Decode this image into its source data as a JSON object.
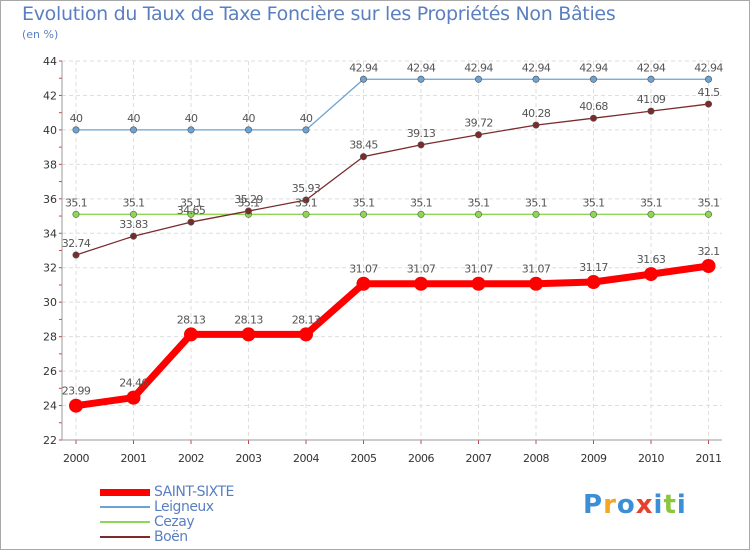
{
  "chart_data": {
    "type": "line",
    "title": "Evolution du Taux de Taxe Foncière sur les Propriétés Non Bâties",
    "subtitle": "(en %)",
    "x": [
      "2000",
      "2001",
      "2002",
      "2003",
      "2004",
      "2005",
      "2006",
      "2007",
      "2008",
      "2009",
      "2010",
      "2011"
    ],
    "ylim": [
      22,
      44
    ],
    "yticks": [
      22,
      24,
      26,
      28,
      30,
      32,
      34,
      36,
      38,
      40,
      42,
      44
    ],
    "grid": true,
    "legend_position": "bottom-left",
    "series": [
      {
        "name": "SAINT-SIXTE",
        "color": "#ff0000",
        "labels": [
          "23.99",
          "24.46",
          "28.13",
          "28.13",
          "28.13",
          "31.07",
          "31.07",
          "31.07",
          "31.07",
          "31.17",
          "31.63",
          "32.1"
        ],
        "values": [
          23.99,
          24.46,
          28.13,
          28.13,
          28.13,
          31.07,
          31.07,
          31.07,
          31.07,
          31.17,
          31.63,
          32.1
        ]
      },
      {
        "name": "Leigneux",
        "color": "#6aa3d4",
        "labels": [
          "40",
          "40",
          "40",
          "40",
          "40",
          "42.94",
          "42.94",
          "42.94",
          "42.94",
          "42.94",
          "42.94",
          "42.94"
        ],
        "values": [
          40,
          40,
          40,
          40,
          40,
          42.94,
          42.94,
          42.94,
          42.94,
          42.94,
          42.94,
          42.94
        ]
      },
      {
        "name": "Cezay",
        "color": "#8fd655",
        "labels": [
          "35.1",
          "35.1",
          "35.1",
          "35.1",
          "35.1",
          "35.1",
          "35.1",
          "35.1",
          "35.1",
          "35.1",
          "35.1",
          "35.1"
        ],
        "values": [
          35.1,
          35.1,
          35.1,
          35.1,
          35.1,
          35.1,
          35.1,
          35.1,
          35.1,
          35.1,
          35.1,
          35.1
        ]
      },
      {
        "name": "Boën",
        "color": "#7b2b2b",
        "labels": [
          "32.74",
          "33.83",
          "34.65",
          "35.29",
          "35.93",
          "38.45",
          "39.13",
          "39.72",
          "40.28",
          "40.68",
          "41.09",
          "41.5"
        ],
        "values": [
          32.74,
          33.83,
          34.65,
          35.29,
          35.93,
          38.45,
          39.13,
          39.72,
          40.28,
          40.68,
          41.09,
          41.5
        ]
      }
    ]
  },
  "branding": {
    "logo_letters": [
      "P",
      "r",
      "o",
      "x",
      "i",
      "t",
      "i"
    ],
    "logo_colors": [
      "#3a8fd6",
      "#f5a623",
      "#3a8fd6",
      "#e8402c",
      "#3a8fd6",
      "#8cc63f",
      "#3a8fd6"
    ]
  }
}
